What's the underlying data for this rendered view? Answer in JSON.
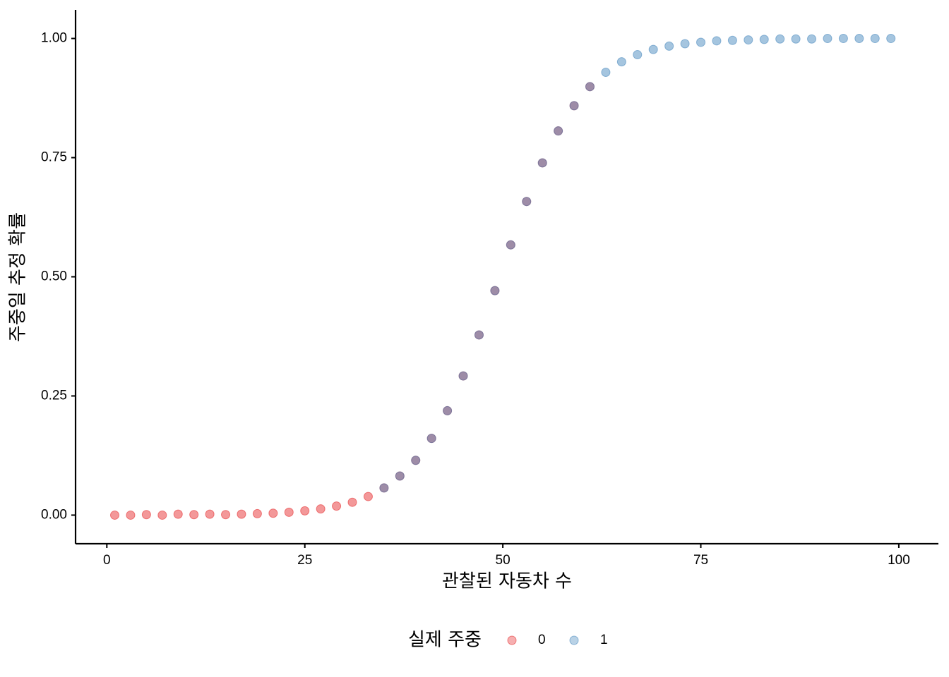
{
  "chart_data": {
    "type": "scatter",
    "xlabel": "관찰된 자동차 수",
    "ylabel": "주중일 추정 확률",
    "legend_title": "실제 주중",
    "legend_position": "bottom",
    "xlim": [
      -3.95,
      105
    ],
    "xticks": [
      0,
      25,
      50,
      75,
      100
    ],
    "ylim": [
      -0.06,
      1.06
    ],
    "yticks": [
      {
        "value": 0,
        "label": "0.00"
      },
      {
        "value": 0.25,
        "label": "0.25"
      },
      {
        "value": 0.5,
        "label": "0.50"
      },
      {
        "value": 0.75,
        "label": "0.75"
      },
      {
        "value": 1,
        "label": "1.00"
      }
    ],
    "series": [
      {
        "name": "0",
        "color": "#e41a1c",
        "x": [
          1,
          3,
          5,
          7,
          9,
          11,
          13,
          15,
          17,
          19,
          21,
          23,
          25,
          27,
          29,
          31,
          33,
          35,
          37,
          39,
          41,
          43,
          45,
          47,
          49,
          51,
          53,
          55,
          57,
          59,
          61
        ],
        "values": [
          0.0,
          0.0,
          0.001,
          0.0,
          0.002,
          0.001,
          0.002,
          0.001,
          0.002,
          0.003,
          0.004,
          0.006,
          0.009,
          0.013,
          0.019,
          0.027,
          0.039,
          0.057,
          0.082,
          0.115,
          0.161,
          0.219,
          0.292,
          0.378,
          0.471,
          0.567,
          0.658,
          0.739,
          0.806,
          0.859,
          0.899
        ]
      },
      {
        "name": "1",
        "color": "#377eb8",
        "x": [
          35,
          37,
          39,
          41,
          43,
          45,
          47,
          49,
          51,
          53,
          55,
          57,
          59,
          61,
          63,
          65,
          67,
          69,
          71,
          73,
          75,
          77,
          79,
          81,
          83,
          85,
          87,
          89,
          91,
          93,
          95,
          97,
          99
        ],
        "values": [
          0.057,
          0.082,
          0.115,
          0.161,
          0.219,
          0.292,
          0.378,
          0.471,
          0.567,
          0.658,
          0.739,
          0.806,
          0.859,
          0.899,
          0.929,
          0.951,
          0.966,
          0.977,
          0.984,
          0.989,
          0.992,
          0.995,
          0.996,
          0.997,
          0.998,
          0.999,
          0.999,
          0.999,
          1.0,
          1.0,
          1.0,
          1.0,
          1.0
        ]
      }
    ]
  }
}
